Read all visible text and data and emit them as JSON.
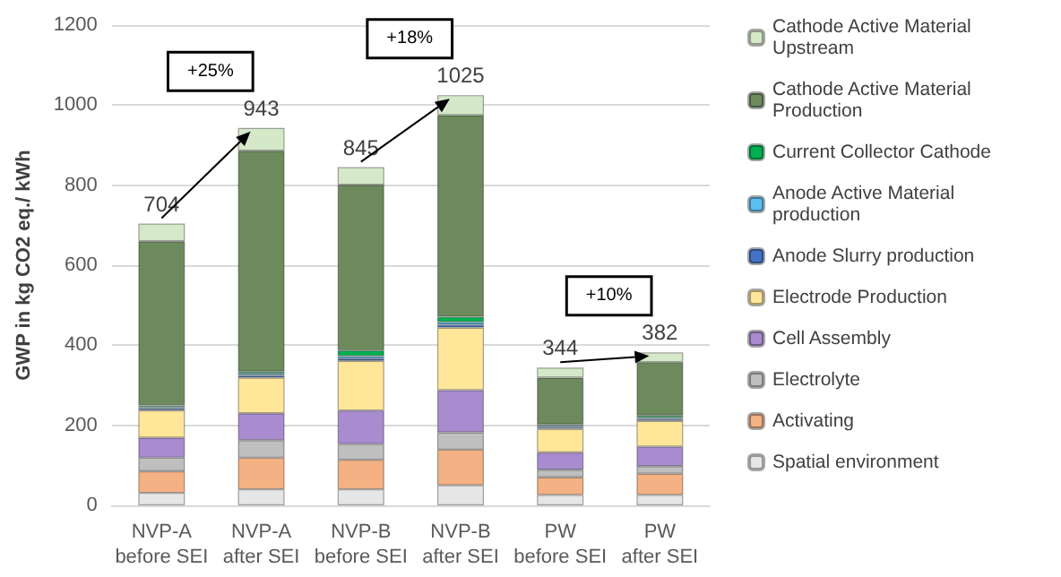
{
  "chart_data": {
    "type": "bar",
    "stacked": true,
    "ylabel": "GWP in kg CO2 eq./ kWh",
    "categories": [
      "NVP-A before SEI",
      "NVP-A after SEI",
      "NVP-B before SEI",
      "NVP-B after SEI",
      "PW before SEI",
      "PW after SEI"
    ],
    "series": [
      {
        "name": "Spatial environment",
        "color": "#e7e6e6",
        "values": [
          31,
          40,
          40,
          50,
          26,
          26
        ]
      },
      {
        "name": "Activating",
        "color": "#f4b183",
        "values": [
          54,
          79,
          74,
          89,
          44,
          53
        ]
      },
      {
        "name": "Electrolyte",
        "color": "#bfbfbf",
        "values": [
          34,
          44,
          39,
          43,
          19,
          19
        ]
      },
      {
        "name": "Cell Assembly",
        "color": "#a98bd0",
        "values": [
          50,
          67,
          84,
          106,
          43,
          49
        ]
      },
      {
        "name": "Electrode Production",
        "color": "#ffe699",
        "values": [
          68,
          89,
          124,
          156,
          59,
          64
        ]
      },
      {
        "name": "Anode Slurry production",
        "color": "#4472c4",
        "values": [
          5,
          5,
          6,
          7,
          4,
          4
        ]
      },
      {
        "name": "Anode Active Material production",
        "color": "#5bc0f0",
        "values": [
          4,
          5,
          6,
          7,
          4,
          4
        ]
      },
      {
        "name": "Current Collector Cathode",
        "color": "#00b050",
        "values": [
          4,
          5,
          14,
          13,
          3,
          5
        ]
      },
      {
        "name": "Cathode Active Material Production",
        "color": "#6d8a5c",
        "values": [
          410,
          552,
          414,
          504,
          117,
          134
        ]
      },
      {
        "name": "Cathode Active Material Upstream",
        "color": "#d5e8c8",
        "values": [
          44,
          57,
          44,
          50,
          25,
          24
        ]
      }
    ],
    "totals": [
      "704",
      "943",
      "845",
      "1025",
      "344",
      "382"
    ],
    "annotations": [
      "+25%",
      "+18%",
      "+10%"
    ],
    "ylim": [
      0,
      1200
    ],
    "yticks": [
      0,
      200,
      400,
      600,
      800,
      1000,
      1200
    ],
    "grid": "y",
    "legend": "right"
  }
}
